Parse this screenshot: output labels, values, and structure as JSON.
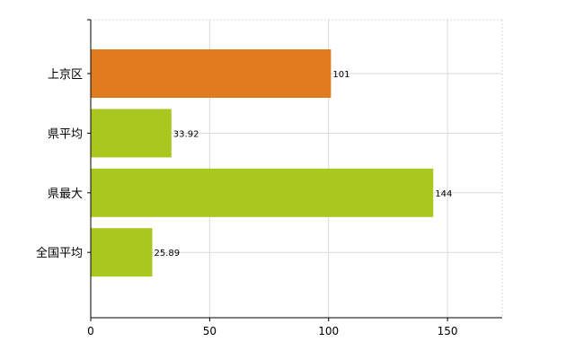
{
  "chart_data": {
    "type": "bar",
    "orientation": "horizontal",
    "categories": [
      "上京区",
      "県平均",
      "県最大",
      "全国平均"
    ],
    "values": [
      101,
      33.92,
      144,
      25.89
    ],
    "value_labels": [
      "101",
      "33.92",
      "144",
      "25.89"
    ],
    "bar_colors": [
      "#e07b20",
      "#a8c820",
      "#a8c820",
      "#a8c820"
    ],
    "xlim": [
      0,
      173
    ],
    "x_ticks": [
      0,
      50,
      100,
      150
    ],
    "x_tick_labels": [
      "0",
      "50",
      "100",
      "150"
    ],
    "title": "",
    "xlabel": "",
    "ylabel": "",
    "grid": true,
    "legend": "none"
  }
}
